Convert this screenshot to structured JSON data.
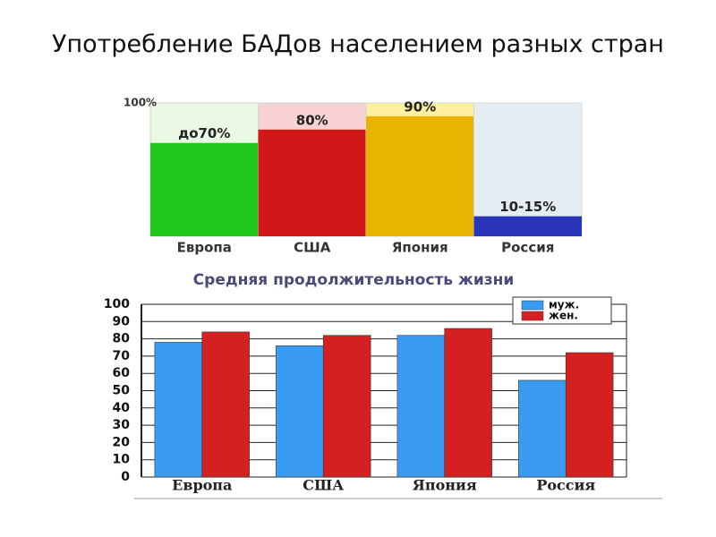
{
  "title": "Употребление БАДов населением разных стран",
  "chart_data": [
    {
      "type": "bar",
      "categories": [
        "Европа",
        "США",
        "Япония",
        "Россия"
      ],
      "values": [
        70,
        80,
        90,
        15
      ],
      "value_labels": [
        "до70%",
        "80%",
        "90%",
        "10-15%"
      ],
      "colors": [
        "#22c81e",
        "#d01818",
        "#e8b400",
        "#2a34b8"
      ],
      "background_colors": [
        "#eaf8e4",
        "#f8d2d2",
        "#fff0a0",
        "#e4eef2"
      ],
      "ylim": [
        0,
        100
      ],
      "yticks": [
        {
          "value": 100,
          "label": "100%"
        }
      ]
    },
    {
      "type": "grouped_bar",
      "title": "Средняя продолжительность жизни",
      "categories": [
        "Европа",
        "США",
        "Япония",
        "Россия"
      ],
      "series": [
        {
          "name": "муж.",
          "color": "#3a9cf0",
          "values": [
            78,
            76,
            82,
            56
          ]
        },
        {
          "name": "жен.",
          "color": "#d42020",
          "values": [
            84,
            82,
            86,
            72
          ]
        }
      ],
      "ylim": [
        0,
        100
      ],
      "yticks": [
        0,
        10,
        20,
        30,
        40,
        50,
        60,
        70,
        80,
        90,
        100
      ],
      "grid": true,
      "legend": "top-right"
    }
  ]
}
